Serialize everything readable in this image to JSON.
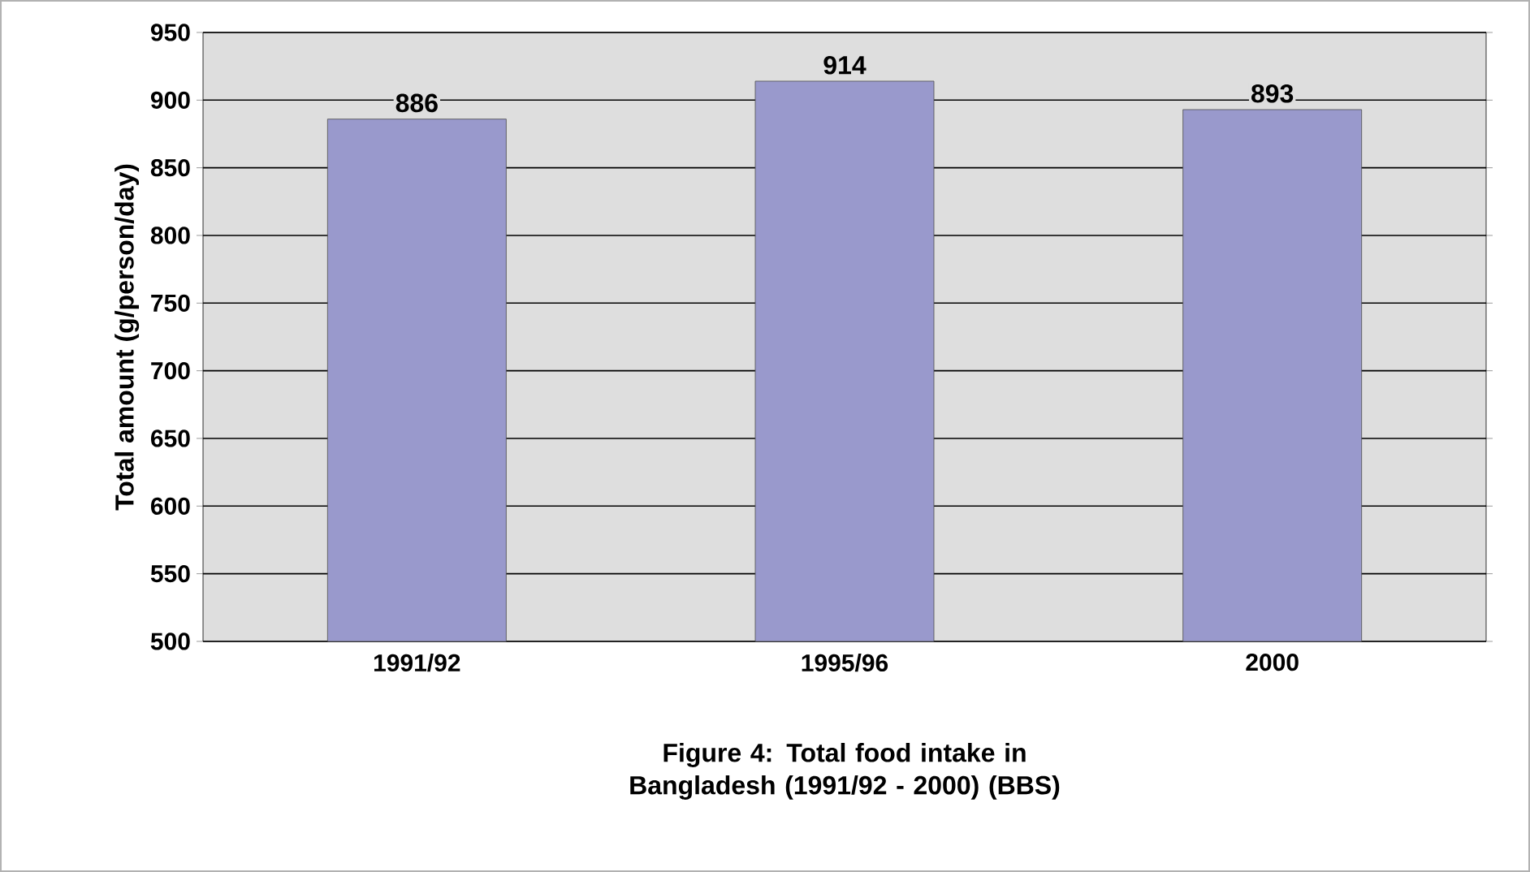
{
  "chart_data": {
    "type": "bar",
    "ylabel": "Total amount (g/person/day)",
    "categories": [
      "1991/92",
      "1995/96",
      "2000"
    ],
    "values": [
      886,
      914,
      893
    ],
    "color": "#9999cc",
    "ylim": [
      500,
      950
    ],
    "yticks": [
      500,
      550,
      600,
      650,
      700,
      750,
      800,
      850,
      900,
      950
    ],
    "grid": "y",
    "data_labels": true,
    "annotations": [
      "Figure 4: Total food intake in Bangladesh (1991/92 - 2000) (BBS)"
    ]
  }
}
